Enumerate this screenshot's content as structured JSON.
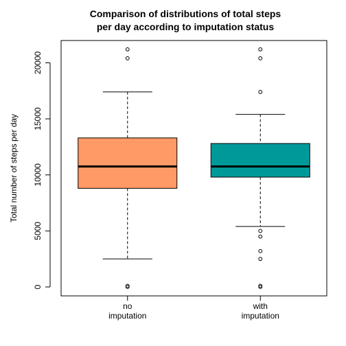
{
  "chart_data": {
    "type": "box",
    "title_lines": [
      "Comparison of distributions of total steps",
      "per day according to imputation status"
    ],
    "ylabel": "Total number of steps per day",
    "xlabel": "",
    "ylim": [
      0,
      22000
    ],
    "yticks": [
      0,
      5000,
      10000,
      15000,
      20000
    ],
    "groups": [
      {
        "label_lines": [
          "no",
          "imputation"
        ],
        "color": "#FF9966",
        "whisker_low": 2500,
        "q1": 8800,
        "median": 10750,
        "q3": 13300,
        "whisker_high": 17400,
        "outliers": [
          0,
          100,
          20400,
          21200
        ]
      },
      {
        "label_lines": [
          "with",
          "imputation"
        ],
        "color": "#009999",
        "whisker_low": 5400,
        "q1": 9800,
        "median": 10750,
        "q3": 12800,
        "whisker_high": 15400,
        "outliers": [
          0,
          100,
          2500,
          3200,
          4500,
          5000,
          17400,
          20400,
          21200
        ]
      }
    ]
  }
}
